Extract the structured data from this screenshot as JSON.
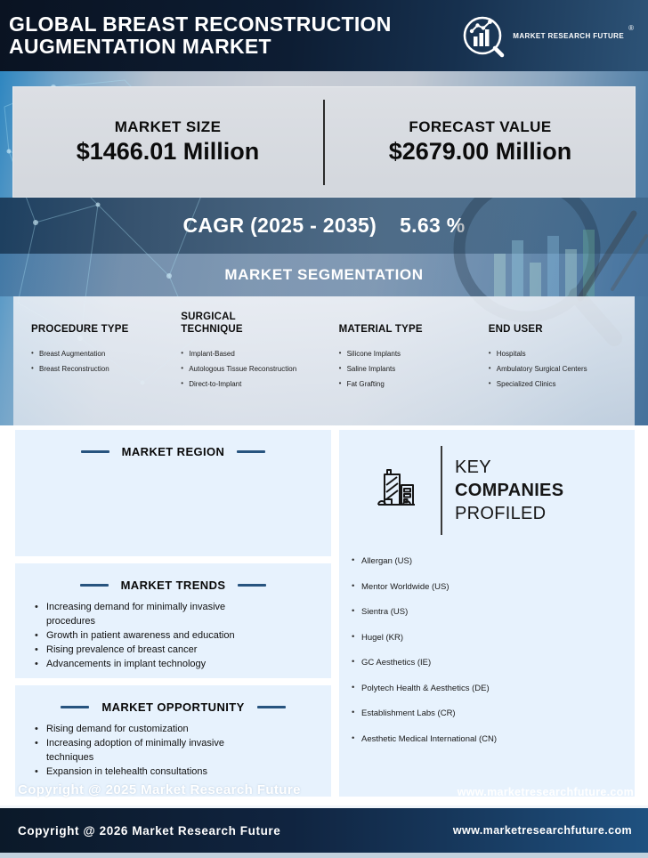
{
  "header": {
    "title_line1": "GLOBAL BREAST RECONSTRUCTION",
    "title_line2": "AUGMENTATION MARKET",
    "logo_text": "MARKET RESEARCH FUTURE",
    "registered_mark": "®"
  },
  "stats": {
    "market_size_label": "MARKET SIZE",
    "market_size_value": "$1466.01 Million",
    "forecast_label": "FORECAST VALUE",
    "forecast_value": "$2679.00 Million",
    "cagr_label": "CAGR (2025 - 2035)",
    "cagr_value": "5.63 %"
  },
  "segmentation": {
    "title": "MARKET SEGMENTATION",
    "columns": [
      {
        "heading": "PROCEDURE TYPE",
        "items": [
          "Breast Augmentation",
          "Breast Reconstruction"
        ]
      },
      {
        "heading": "SURGICAL TECHNIQUE",
        "items": [
          "Implant-Based",
          "Autologous Tissue Reconstruction",
          "Direct-to-Implant"
        ]
      },
      {
        "heading": "MATERIAL TYPE",
        "items": [
          "Silicone Implants",
          "Saline Implants",
          "Fat Grafting"
        ]
      },
      {
        "heading": "END USER",
        "items": [
          "Hospitals",
          "Ambulatory Surgical Centers",
          "Specialized Clinics"
        ]
      }
    ]
  },
  "regions": {
    "title": "MARKET REGION",
    "items": []
  },
  "trends": {
    "title": "MARKET TRENDS",
    "items": [
      "Increasing demand for minimally invasive procedures",
      "Growth in patient awareness and education",
      "Rising prevalence of breast cancer",
      "Advancements in implant technology"
    ]
  },
  "opportunity": {
    "title": "MARKET OPPORTUNITY",
    "items": [
      "Rising demand for customization",
      "Increasing adoption of minimally invasive techniques",
      "Expansion in telehealth consultations"
    ]
  },
  "companies": {
    "title_line1": "KEY",
    "title_line2": "COMPANIES",
    "title_line3": "PROFILED",
    "items": [
      "Allergan (US)",
      "Mentor Worldwide (US)",
      "Sientra (US)",
      "Hugel (KR)",
      "GC Aesthetics (IE)",
      "Polytech Health & Aesthetics (DE)",
      "Establishment Labs (CR)",
      "Aesthetic Medical International (CN)"
    ]
  },
  "overlay_footer": {
    "copyright": "Copyright @ 2025 Market Research Future",
    "website": "www.marketresearchfuture.com"
  },
  "footer": {
    "copyright": "Copyright @ 2026 Market Research Future",
    "website": "www.marketresearchfuture.com"
  },
  "colors": {
    "header_navy": "#0d1d33",
    "accent_dash_blue": "#27547f",
    "panel_light_blue": "#e7f2fd",
    "cagr_band_blue": "#2f5272",
    "footer_navy": "#102440"
  }
}
